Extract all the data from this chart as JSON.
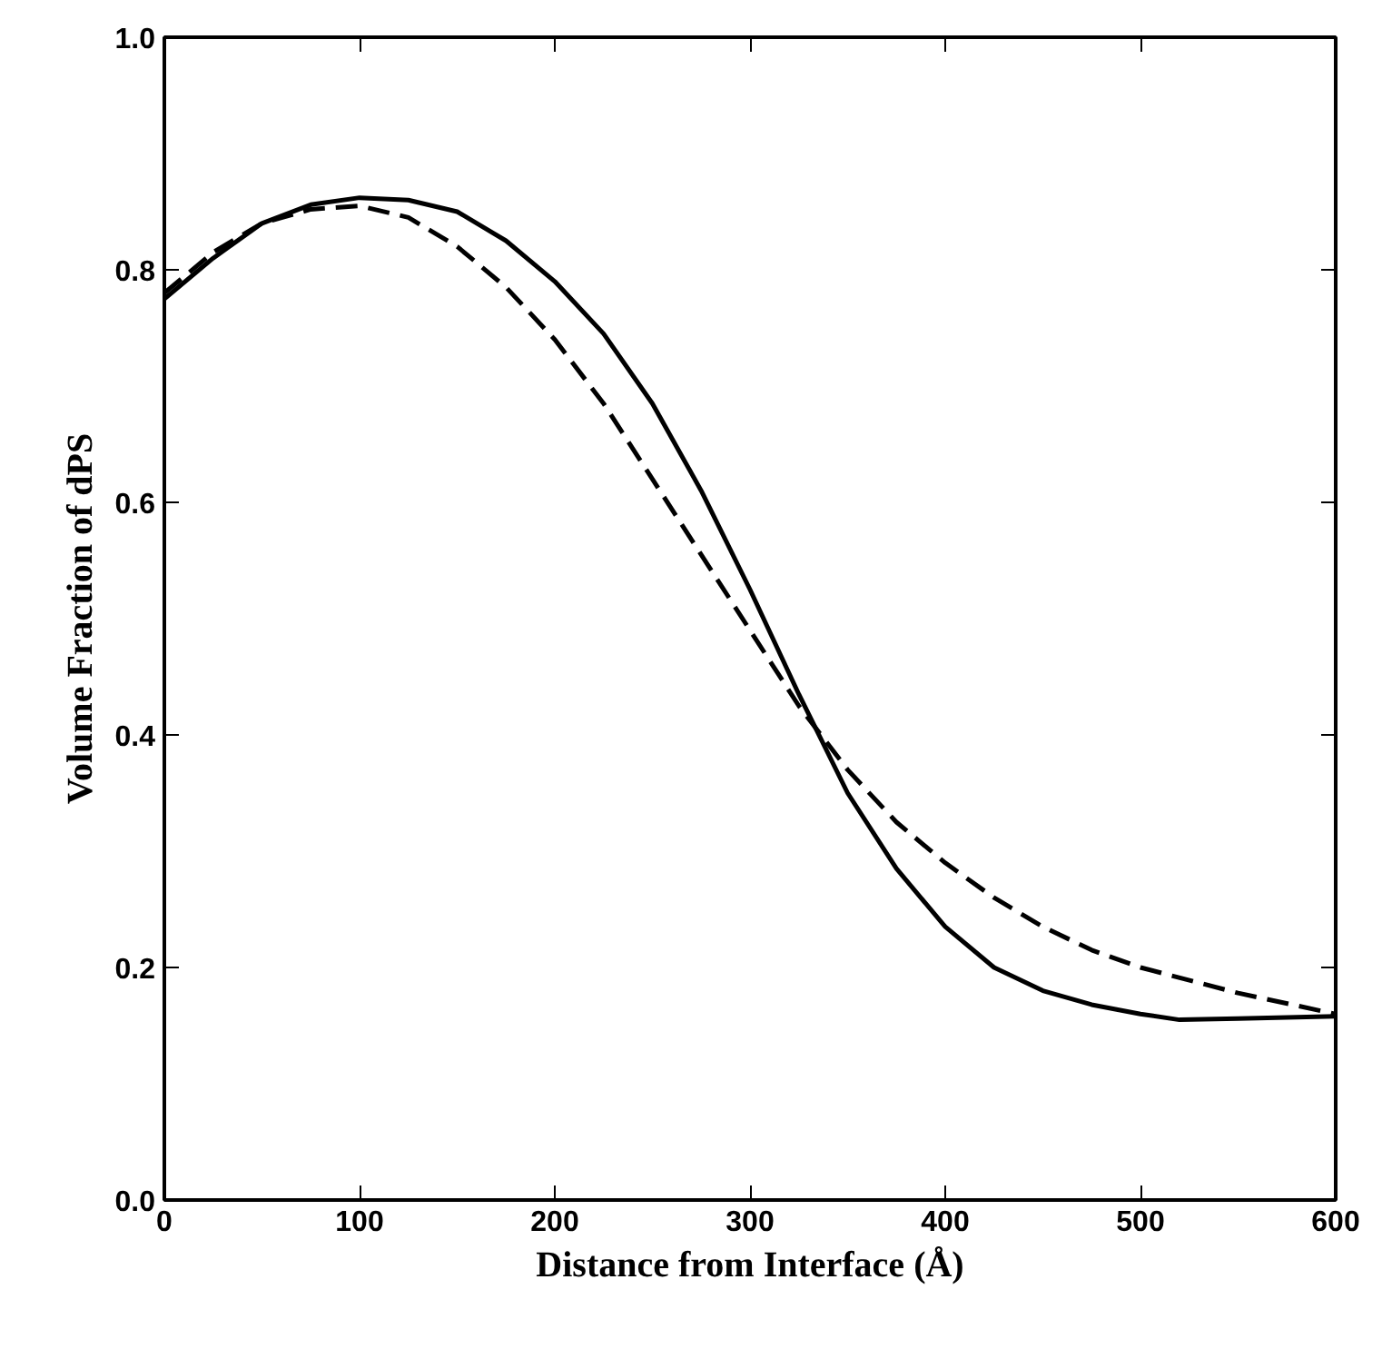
{
  "chart_data": {
    "type": "line",
    "xlabel": "Distance from Interface (Å)",
    "ylabel": "Volume Fraction of dPS",
    "xlim": [
      0,
      600
    ],
    "ylim": [
      0,
      1.0
    ],
    "xticks": [
      0,
      100,
      200,
      300,
      400,
      500,
      600
    ],
    "yticks": [
      {
        "value": 0,
        "label": "0.0"
      },
      0.2,
      0.4,
      0.6,
      0.8,
      {
        "value": 1.0,
        "label": "1.0"
      }
    ],
    "grid": false,
    "series": [
      {
        "color": "#000000",
        "line_style": "solid",
        "x": [
          0,
          25,
          50,
          75,
          100,
          125,
          150,
          175,
          200,
          225,
          250,
          275,
          300,
          325,
          350,
          375,
          400,
          425,
          450,
          475,
          500,
          520,
          550,
          600
        ],
        "values": [
          0.775,
          0.81,
          0.84,
          0.856,
          0.862,
          0.86,
          0.85,
          0.825,
          0.79,
          0.745,
          0.685,
          0.61,
          0.525,
          0.435,
          0.35,
          0.285,
          0.235,
          0.2,
          0.18,
          0.168,
          0.16,
          0.155,
          0.156,
          0.158
        ]
      },
      {
        "color": "#000000",
        "line_style": "dashed",
        "x": [
          0,
          25,
          50,
          75,
          100,
          125,
          150,
          175,
          200,
          225,
          250,
          275,
          300,
          325,
          350,
          375,
          400,
          425,
          450,
          475,
          500,
          550,
          600
        ],
        "values": [
          0.78,
          0.815,
          0.84,
          0.852,
          0.855,
          0.845,
          0.82,
          0.785,
          0.74,
          0.685,
          0.62,
          0.555,
          0.49,
          0.425,
          0.37,
          0.325,
          0.29,
          0.26,
          0.235,
          0.215,
          0.2,
          0.178,
          0.16
        ]
      }
    ]
  }
}
